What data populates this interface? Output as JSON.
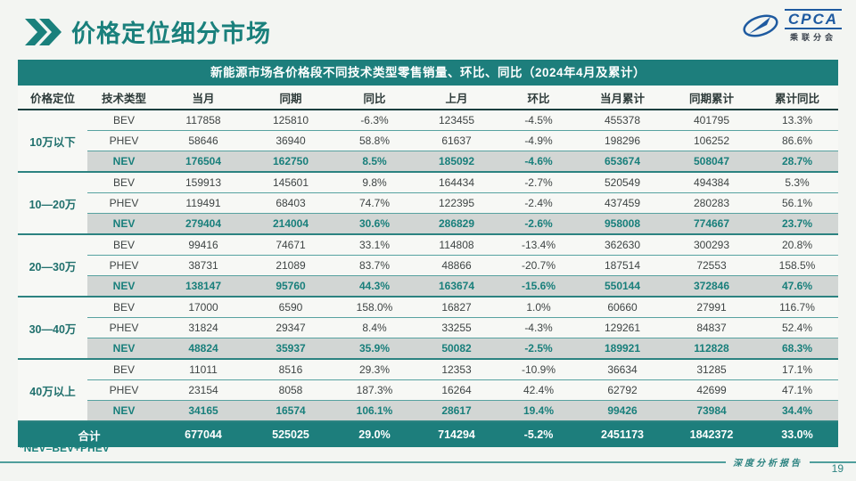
{
  "header": {
    "title": "价格定位细分市场"
  },
  "logo": {
    "acronym": "CPCA",
    "subtitle": "乘联分会"
  },
  "table": {
    "title": "新能源市场各价格段不同技术类型零售销量、环比、同比（2024年4月及累计）",
    "columns": [
      "价格定位",
      "技术类型",
      "当月",
      "同期",
      "同比",
      "上月",
      "环比",
      "当月累计",
      "同期累计",
      "累计同比"
    ],
    "groups": [
      {
        "segment": "10万以下",
        "rows": [
          {
            "type": "BEV",
            "values": [
              "117858",
              "125810",
              "-6.3%",
              "123455",
              "-4.5%",
              "455378",
              "401795",
              "13.3%"
            ]
          },
          {
            "type": "PHEV",
            "values": [
              "58646",
              "36940",
              "58.8%",
              "61637",
              "-4.9%",
              "198296",
              "106252",
              "86.6%"
            ]
          },
          {
            "type": "NEV",
            "values": [
              "176504",
              "162750",
              "8.5%",
              "185092",
              "-4.6%",
              "653674",
              "508047",
              "28.7%"
            ]
          }
        ]
      },
      {
        "segment": "10—20万",
        "rows": [
          {
            "type": "BEV",
            "values": [
              "159913",
              "145601",
              "9.8%",
              "164434",
              "-2.7%",
              "520549",
              "494384",
              "5.3%"
            ]
          },
          {
            "type": "PHEV",
            "values": [
              "119491",
              "68403",
              "74.7%",
              "122395",
              "-2.4%",
              "437459",
              "280283",
              "56.1%"
            ]
          },
          {
            "type": "NEV",
            "values": [
              "279404",
              "214004",
              "30.6%",
              "286829",
              "-2.6%",
              "958008",
              "774667",
              "23.7%"
            ]
          }
        ]
      },
      {
        "segment": "20—30万",
        "rows": [
          {
            "type": "BEV",
            "values": [
              "99416",
              "74671",
              "33.1%",
              "114808",
              "-13.4%",
              "362630",
              "300293",
              "20.8%"
            ]
          },
          {
            "type": "PHEV",
            "values": [
              "38731",
              "21089",
              "83.7%",
              "48866",
              "-20.7%",
              "187514",
              "72553",
              "158.5%"
            ]
          },
          {
            "type": "NEV",
            "values": [
              "138147",
              "95760",
              "44.3%",
              "163674",
              "-15.6%",
              "550144",
              "372846",
              "47.6%"
            ]
          }
        ]
      },
      {
        "segment": "30—40万",
        "rows": [
          {
            "type": "BEV",
            "values": [
              "17000",
              "6590",
              "158.0%",
              "16827",
              "1.0%",
              "60660",
              "27991",
              "116.7%"
            ]
          },
          {
            "type": "PHEV",
            "values": [
              "31824",
              "29347",
              "8.4%",
              "33255",
              "-4.3%",
              "129261",
              "84837",
              "52.4%"
            ]
          },
          {
            "type": "NEV",
            "values": [
              "48824",
              "35937",
              "35.9%",
              "50082",
              "-2.5%",
              "189921",
              "112828",
              "68.3%"
            ]
          }
        ]
      },
      {
        "segment": "40万以上",
        "rows": [
          {
            "type": "BEV",
            "values": [
              "11011",
              "8516",
              "29.3%",
              "12353",
              "-10.9%",
              "36634",
              "31285",
              "17.1%"
            ]
          },
          {
            "type": "PHEV",
            "values": [
              "23154",
              "8058",
              "187.3%",
              "16264",
              "42.4%",
              "62792",
              "42699",
              "47.1%"
            ]
          },
          {
            "type": "NEV",
            "values": [
              "34165",
              "16574",
              "106.1%",
              "28617",
              "19.4%",
              "99426",
              "73984",
              "34.4%"
            ]
          }
        ]
      }
    ],
    "total": {
      "label": "合计",
      "values": [
        "677044",
        "525025",
        "29.0%",
        "714294",
        "-5.2%",
        "2451173",
        "1842372",
        "33.0%"
      ]
    }
  },
  "footer": {
    "footnote": "*NEV=BEV+PHEV",
    "report_label": "深度分析报告",
    "page_number": "19"
  },
  "colors": {
    "accent_teal": "#1d7e7c",
    "nev_row_bg": "#d2d6d4",
    "logo_blue": "#1e5aa0"
  }
}
